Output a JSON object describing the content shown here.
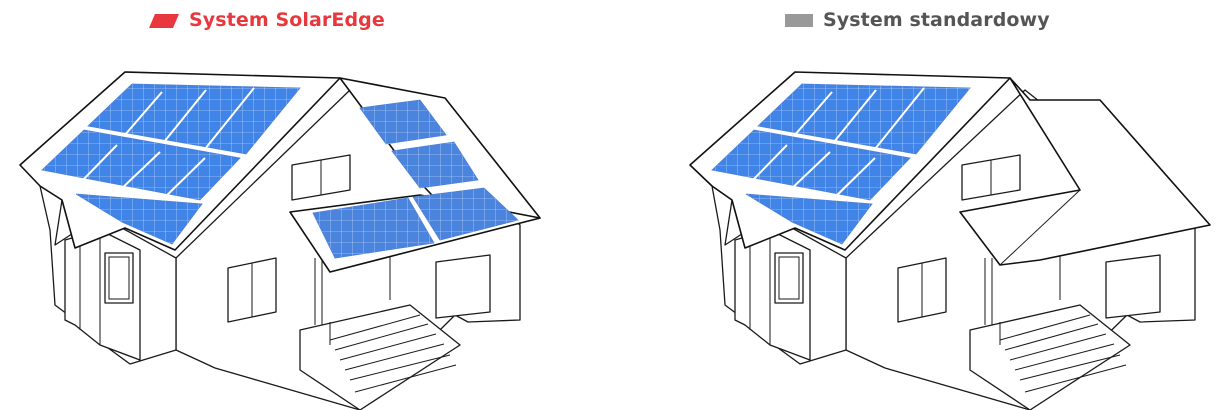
{
  "legend": {
    "solaredge": {
      "label": "System SolarEdge",
      "color": "#e8383d"
    },
    "standard": {
      "label": "System standardowy",
      "color": "#555555",
      "swatch_color": "#999999"
    }
  },
  "colors": {
    "panel": "#3f84e6",
    "panel_secondary": "#4a84dd"
  }
}
